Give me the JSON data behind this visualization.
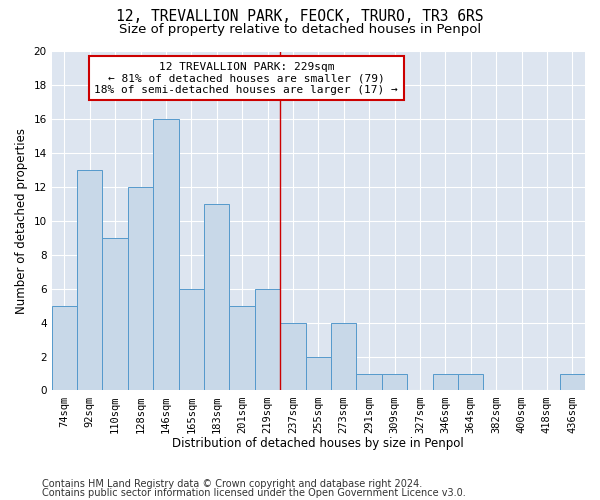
{
  "title1": "12, TREVALLION PARK, FEOCK, TRURO, TR3 6RS",
  "title2": "Size of property relative to detached houses in Penpol",
  "xlabel": "Distribution of detached houses by size in Penpol",
  "ylabel": "Number of detached properties",
  "categories": [
    "74sqm",
    "92sqm",
    "110sqm",
    "128sqm",
    "146sqm",
    "165sqm",
    "183sqm",
    "201sqm",
    "219sqm",
    "237sqm",
    "255sqm",
    "273sqm",
    "291sqm",
    "309sqm",
    "327sqm",
    "346sqm",
    "364sqm",
    "382sqm",
    "400sqm",
    "418sqm",
    "436sqm"
  ],
  "values": [
    5,
    13,
    9,
    12,
    16,
    6,
    11,
    5,
    6,
    4,
    2,
    4,
    1,
    1,
    0,
    1,
    1,
    0,
    0,
    0,
    1
  ],
  "bar_color": "#c8d8e8",
  "bar_edge_color": "#5599cc",
  "vline_x_index": 8.5,
  "annotation_line1": "12 TREVALLION PARK: 229sqm",
  "annotation_line2": "← 81% of detached houses are smaller (79)",
  "annotation_line3": "18% of semi-detached houses are larger (17) →",
  "annotation_box_color": "#ffffff",
  "annotation_box_edge_color": "#cc0000",
  "vline_color": "#cc0000",
  "ylim": [
    0,
    20
  ],
  "yticks": [
    0,
    2,
    4,
    6,
    8,
    10,
    12,
    14,
    16,
    18,
    20
  ],
  "footer1": "Contains HM Land Registry data © Crown copyright and database right 2024.",
  "footer2": "Contains public sector information licensed under the Open Government Licence v3.0.",
  "background_color": "#dde5f0",
  "grid_color": "#ffffff",
  "title1_fontsize": 10.5,
  "title2_fontsize": 9.5,
  "axis_label_fontsize": 8.5,
  "tick_fontsize": 7.5,
  "annotation_fontsize": 8,
  "footer_fontsize": 7
}
